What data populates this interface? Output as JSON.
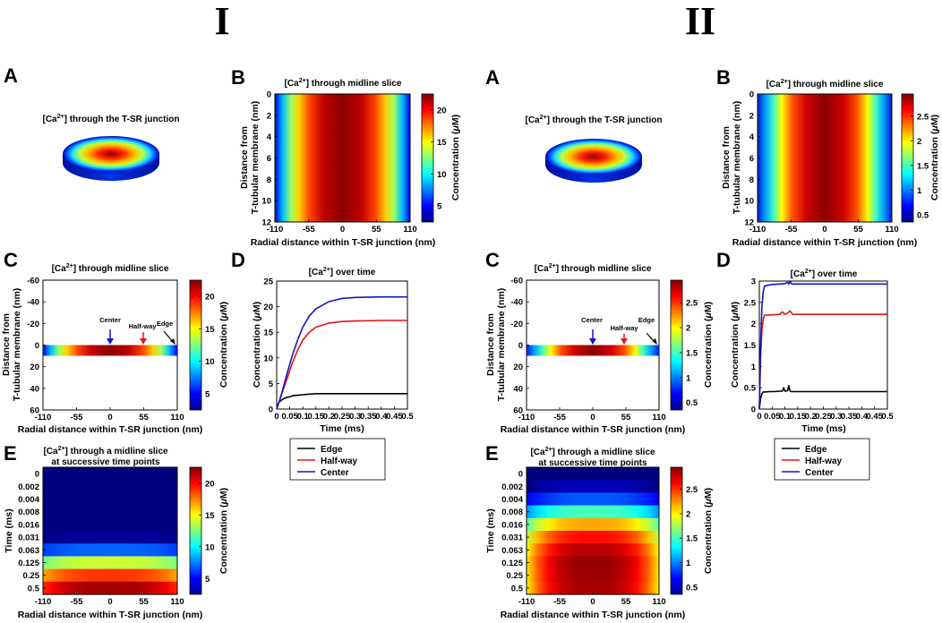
{
  "colors": {
    "edge": "#000000",
    "halfway": "#e0161b",
    "center": "#1414c8"
  },
  "section_titles": [
    "I",
    "II"
  ],
  "panel_letters": {
    "a": "A",
    "b": "B",
    "c": "C",
    "d": "D",
    "e": "E"
  },
  "shared": {
    "title_3d_pre": "[Ca",
    "title_3d_post": "] through the T-SR junction",
    "title_mid_pre": "[Ca",
    "title_mid_post": "] through midline slice",
    "title_time_pre": "[Ca",
    "title_time_post": "] over time",
    "title_e_line1_pre": "[Ca",
    "title_e_line1_post": "] through a midline slice",
    "title_e_line2": "at successive time points",
    "superscript": "2+",
    "radial_xlabel": "Radial distance within T-SR junction (nm)",
    "depth_ylabel_1": "Distance from",
    "depth_ylabel_2": "T-tubular membrane (nm)",
    "colorbar_label_pre": "Concentration (",
    "colorbar_label_mu": "μ",
    "colorbar_label_post": "M)",
    "time_xlabel": "Time (ms)",
    "time_ylabel": "Time (ms)",
    "conc_ylabel_pre": "Concentration (",
    "conc_ylabel_post": "M)",
    "annot_center": "Center",
    "annot_halfway": "Half-way",
    "annot_edge": "Edge",
    "legend": [
      "Edge",
      "Half-way",
      "Center"
    ],
    "radial_ticks": [
      "-110",
      "-55",
      "0",
      "55",
      "110"
    ],
    "b_y_ticks": [
      "0",
      "2",
      "4",
      "6",
      "8",
      "10",
      "12"
    ],
    "c_y_ticks": [
      "-60",
      "-40",
      "-20",
      "0",
      "20",
      "40",
      "60"
    ],
    "e_time_labels": [
      "0",
      "0.002",
      "0.004",
      "0.008",
      "0.016",
      "0.031",
      "0.063",
      "0.125",
      "0.25",
      "0.5"
    ]
  },
  "chart_data": [
    {
      "id": "I-D",
      "type": "line",
      "title": "[Ca2+] over time",
      "xlabel": "Time (ms)",
      "ylabel": "Concentration (μM)",
      "xlim": [
        0,
        0.5
      ],
      "ylim": [
        0,
        25
      ],
      "xticks": [
        "0",
        "0.05",
        "0.1",
        "0.15",
        "0.2",
        "0.25",
        "0.3",
        "0.35",
        "0.4",
        "0.45",
        "0.5"
      ],
      "yticks": [
        "0",
        "5",
        "10",
        "15",
        "20",
        "25"
      ],
      "series": [
        {
          "name": "Edge",
          "x": [
            0,
            0.005,
            0.01,
            0.02,
            0.03,
            0.04,
            0.05,
            0.06,
            0.08,
            0.1,
            0.12,
            0.15,
            0.2,
            0.3,
            0.4,
            0.5
          ],
          "y": [
            0,
            1.0,
            1.4,
            1.8,
            2.1,
            2.3,
            2.4,
            2.6,
            2.7,
            2.8,
            2.9,
            3.0,
            3.0,
            3.0,
            3.0,
            3.0
          ]
        },
        {
          "name": "Half-way",
          "x": [
            0,
            0.01,
            0.02,
            0.04,
            0.06,
            0.08,
            0.1,
            0.125,
            0.15,
            0.2,
            0.25,
            0.3,
            0.4,
            0.5
          ],
          "y": [
            0,
            1.5,
            3.0,
            6.0,
            9.0,
            11.5,
            13.5,
            15.0,
            16.0,
            16.8,
            17.1,
            17.2,
            17.3,
            17.3
          ]
        },
        {
          "name": "Center",
          "x": [
            0,
            0.01,
            0.02,
            0.04,
            0.06,
            0.08,
            0.1,
            0.125,
            0.15,
            0.2,
            0.25,
            0.3,
            0.4,
            0.5
          ],
          "y": [
            0,
            1.5,
            3.2,
            7.0,
            10.5,
            13.5,
            16.0,
            18.2,
            19.6,
            21.0,
            21.6,
            21.8,
            21.9,
            21.9
          ]
        }
      ]
    },
    {
      "id": "II-D",
      "type": "line",
      "title": "[Ca2+] over time",
      "xlabel": "Time (ms)",
      "ylabel": "Concentration (μM)",
      "xlim": [
        0,
        0.5
      ],
      "ylim": [
        0,
        3
      ],
      "xticks": [
        "0",
        "0.05",
        "0.1",
        "0.15",
        "0.2",
        "0.25",
        "0.3",
        "0.35",
        "0.4",
        "0.45",
        "0.5"
      ],
      "yticks": [
        "0",
        "0.5",
        "1",
        "1.5",
        "2",
        "2.5",
        "3"
      ],
      "series": [
        {
          "name": "Edge",
          "x": [
            0,
            0.005,
            0.01,
            0.015,
            0.02,
            0.04,
            0.06,
            0.08,
            0.09,
            0.095,
            0.1,
            0.11,
            0.115,
            0.12,
            0.125,
            0.13,
            0.2,
            0.3,
            0.4,
            0.5
          ],
          "y": [
            0,
            0.25,
            0.36,
            0.4,
            0.4,
            0.41,
            0.41,
            0.42,
            0.42,
            0.5,
            0.42,
            0.43,
            0.55,
            0.42,
            0.41,
            0.41,
            0.41,
            0.41,
            0.41,
            0.41
          ]
        },
        {
          "name": "Half-way",
          "x": [
            0,
            0.005,
            0.01,
            0.015,
            0.02,
            0.03,
            0.05,
            0.08,
            0.09,
            0.1,
            0.11,
            0.12,
            0.13,
            0.2,
            0.3,
            0.4,
            0.5
          ],
          "y": [
            0,
            1.2,
            1.85,
            2.1,
            2.2,
            2.2,
            2.21,
            2.22,
            2.28,
            2.22,
            2.25,
            2.3,
            2.22,
            2.22,
            2.22,
            2.22,
            2.22
          ]
        },
        {
          "name": "Center",
          "x": [
            0,
            0.005,
            0.01,
            0.015,
            0.02,
            0.03,
            0.05,
            0.08,
            0.1,
            0.11,
            0.115,
            0.12,
            0.125,
            0.13,
            0.2,
            0.3,
            0.4,
            0.5
          ],
          "y": [
            0,
            1.5,
            2.4,
            2.75,
            2.88,
            2.9,
            2.92,
            2.93,
            2.94,
            2.97,
            2.93,
            3.0,
            2.94,
            2.93,
            2.93,
            2.93,
            2.93,
            2.93
          ]
        }
      ]
    },
    {
      "id": "I-colorbar",
      "type": "heatmap",
      "min": 2.5,
      "max": 22.5,
      "ticks": [
        "5",
        "10",
        "15",
        "20"
      ]
    },
    {
      "id": "II-colorbar",
      "type": "heatmap",
      "min": 0.35,
      "max": 2.95,
      "ticks": [
        "0.5",
        "1",
        "1.5",
        "2",
        "2.5"
      ]
    },
    {
      "id": "I-E",
      "type": "heatmap",
      "rows": [
        "0",
        "0.002",
        "0.004",
        "0.008",
        "0.016",
        "0.031",
        "0.063",
        "0.125",
        "0.25",
        "0.5"
      ],
      "row_center_values": [
        0.4,
        0.4,
        0.5,
        0.8,
        1.5,
        3.0,
        7.0,
        14.0,
        19.0,
        21.8
      ],
      "edge_fraction": 0.12
    },
    {
      "id": "II-E",
      "type": "heatmap",
      "rows": [
        "0",
        "0.002",
        "0.004",
        "0.008",
        "0.016",
        "0.031",
        "0.063",
        "0.125",
        "0.25",
        "0.5"
      ],
      "row_center_values": [
        0.15,
        0.5,
        0.9,
        1.5,
        2.2,
        2.6,
        2.8,
        2.9,
        2.88,
        2.85
      ],
      "edge_fraction": 0.3
    }
  ]
}
